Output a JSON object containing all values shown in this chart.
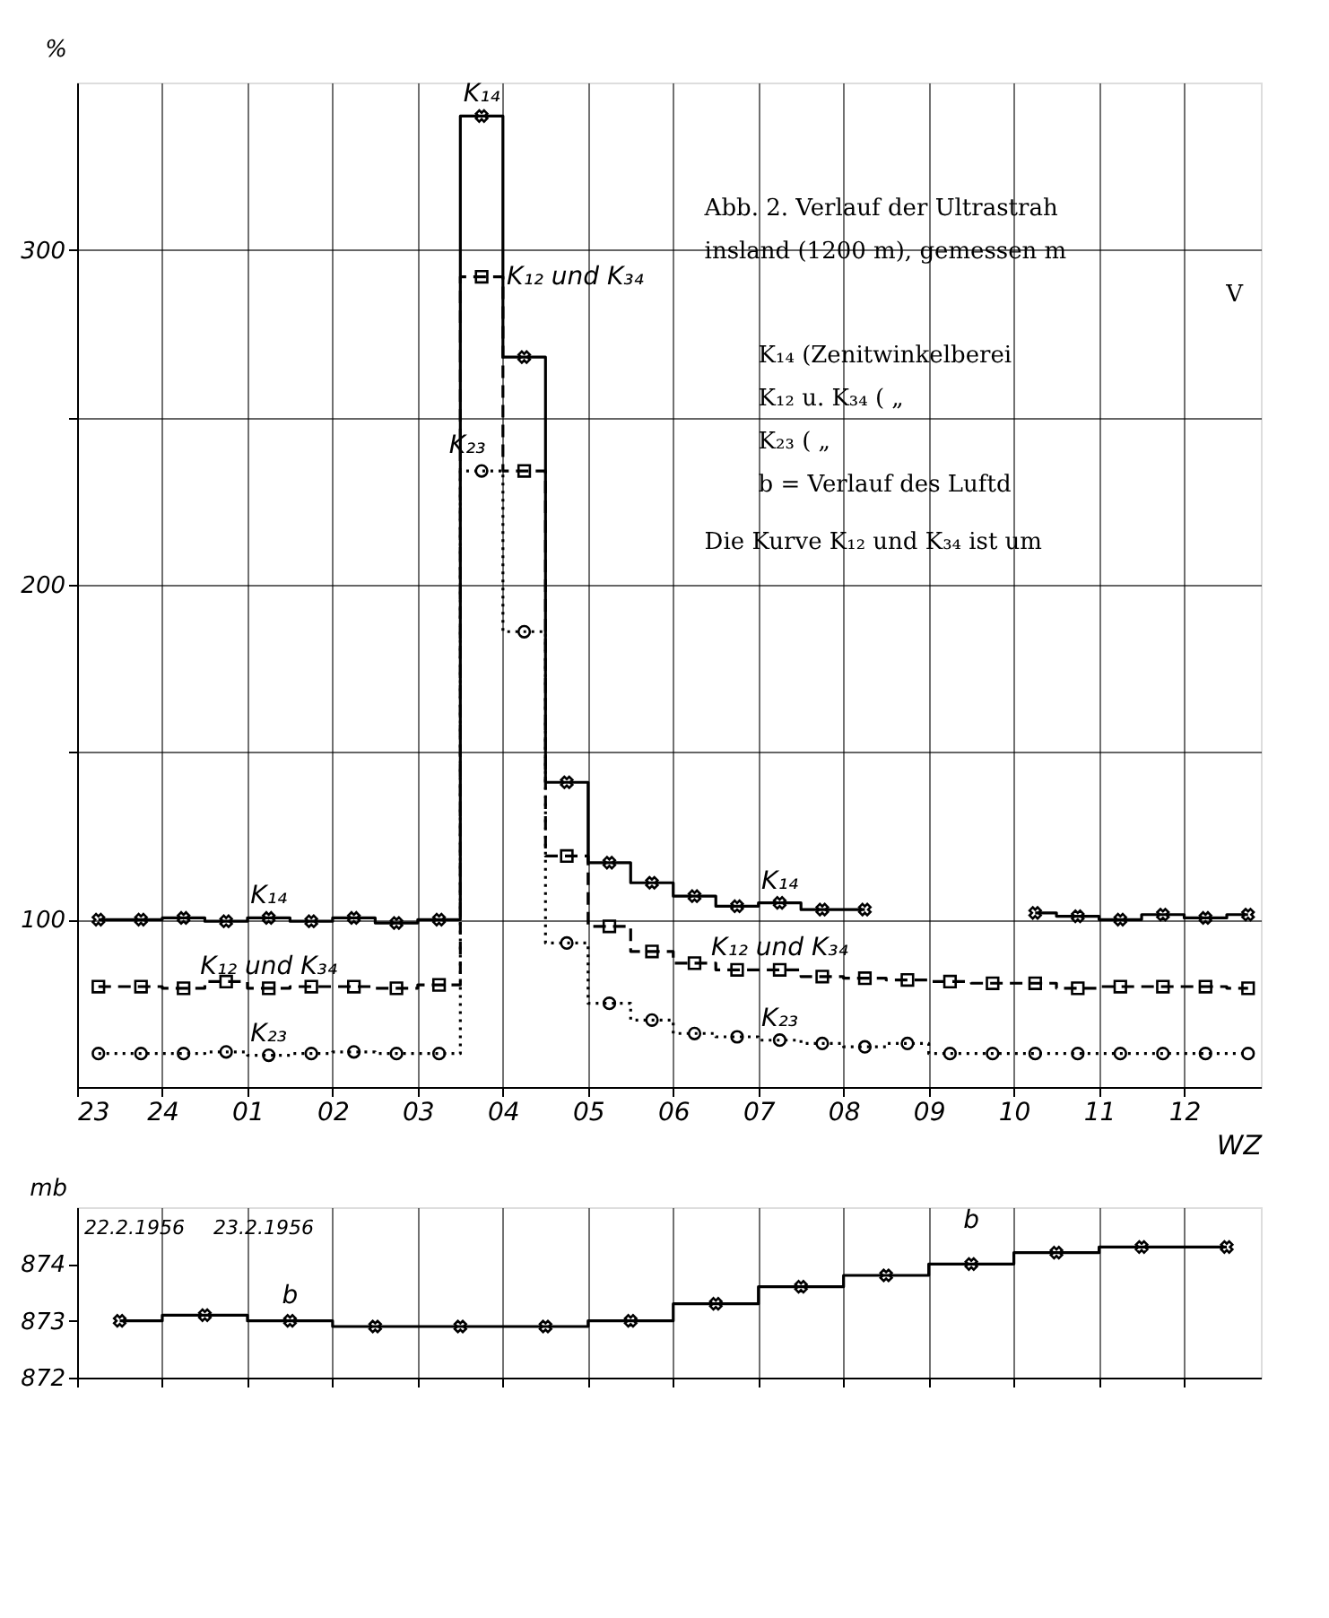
{
  "chart_data": [
    {
      "type": "step",
      "ylabel": "%",
      "xlabel": "WZ",
      "x": [
        "1956-02-22T23:15",
        "1956-02-22T23:45",
        "1956-02-23T00:15",
        "1956-02-23T00:45",
        "1956-02-23T01:15",
        "1956-02-23T01:45",
        "1956-02-23T02:15",
        "1956-02-23T02:45",
        "1956-02-23T03:15",
        "1956-02-23T03:45",
        "1956-02-23T04:15",
        "1956-02-23T04:45",
        "1956-02-23T05:15",
        "1956-02-23T05:45",
        "1956-02-23T06:15",
        "1956-02-23T06:45",
        "1956-02-23T07:15",
        "1956-02-23T07:45",
        "1956-02-23T08:15",
        "1956-02-23T08:45",
        "1956-02-23T09:15",
        "1956-02-23T09:45",
        "1956-02-23T10:15",
        "1956-02-23T10:45",
        "1956-02-23T11:15",
        "1956-02-23T11:45",
        "1956-02-23T12:15",
        "1956-02-23T12:45"
      ],
      "series": [
        {
          "name": "K₁₄",
          "color": "#000000",
          "marker": "cross",
          "line_style": "solid",
          "values": [
            100,
            100,
            100.5,
            99.5,
            100.5,
            99.5,
            100.5,
            99,
            100,
            340,
            268,
            141,
            117,
            111,
            107,
            104,
            105,
            103,
            103,
            null,
            null,
            null,
            102,
            101,
            100,
            101.5,
            100.5,
            101.5
          ]
        },
        {
          "name": "K₁₂ und K₃₄",
          "color": "#000000",
          "marker": "square",
          "line_style": "dashed",
          "values": [
            80,
            80,
            79.5,
            81.5,
            79.5,
            80,
            80,
            79.5,
            80.5,
            292,
            234,
            119,
            98,
            90.5,
            87,
            85,
            85,
            83,
            82.5,
            82,
            81.5,
            81,
            81,
            79.5,
            80,
            80,
            80,
            79.5
          ]
        },
        {
          "name": "K₂₃",
          "color": "#000000",
          "marker": "circle",
          "line_style": "dotted",
          "values": [
            60,
            60,
            60,
            60.5,
            59.5,
            60,
            60.5,
            60,
            60,
            234,
            186,
            93,
            75,
            70,
            66,
            65,
            64,
            63,
            62,
            63,
            60,
            60,
            60,
            60,
            60,
            60,
            60,
            60
          ]
        }
      ],
      "xlim": [
        "1956-02-22T23:00",
        "1956-02-23T12:54"
      ],
      "xticks": [
        {
          "value": "1956-02-22T23:00",
          "label": "23"
        },
        {
          "value": "1956-02-23T00:00",
          "label": "24"
        },
        {
          "value": "1956-02-23T01:00",
          "label": "01"
        },
        {
          "value": "1956-02-23T02:00",
          "label": "02"
        },
        {
          "value": "1956-02-23T03:00",
          "label": "03"
        },
        {
          "value": "1956-02-23T04:00",
          "label": "04"
        },
        {
          "value": "1956-02-23T05:00",
          "label": "05"
        },
        {
          "value": "1956-02-23T06:00",
          "label": "06"
        },
        {
          "value": "1956-02-23T07:00",
          "label": "07"
        },
        {
          "value": "1956-02-23T08:00",
          "label": "08"
        },
        {
          "value": "1956-02-23T09:00",
          "label": "09"
        },
        {
          "value": "1956-02-23T10:00",
          "label": "10"
        },
        {
          "value": "1956-02-23T11:00",
          "label": "11"
        },
        {
          "value": "1956-02-23T12:00",
          "label": "12"
        }
      ],
      "ylim": [
        50,
        350
      ],
      "yticks": [
        100,
        {
          "value": 150,
          "label": null
        },
        200,
        {
          "value": 250,
          "label": null
        },
        300
      ],
      "grid": true,
      "legend": false,
      "annotations": [
        "Abb. 2. Verlauf der Ultrastrah",
        "insland (1200 m), gemessen m",
        "V",
        "K₁₄ (Zenitwinkelberei",
        "K₁₂ u. K₃₄ (  „",
        "K₂₃        (  „",
        "b = Verlauf des Luftd",
        "Die Kurve K₁₂ und K₃₄ ist um"
      ]
    },
    {
      "type": "step",
      "ylabel": "mb",
      "x": [
        "1956-02-22T23:30",
        "1956-02-23T00:30",
        "1956-02-23T01:30",
        "1956-02-23T02:30",
        "1956-02-23T03:30",
        "1956-02-23T04:30",
        "1956-02-23T05:30",
        "1956-02-23T06:30",
        "1956-02-23T07:30",
        "1956-02-23T08:30",
        "1956-02-23T09:30",
        "1956-02-23T10:30",
        "1956-02-23T11:30",
        "1956-02-23T12:30"
      ],
      "series": [
        {
          "name": "b",
          "color": "#000000",
          "marker": "cross",
          "line_style": "solid",
          "values": [
            873.0,
            873.1,
            873.0,
            872.9,
            872.9,
            872.9,
            873.0,
            873.3,
            873.6,
            873.8,
            874.0,
            874.2,
            874.3,
            874.3
          ]
        }
      ],
      "xlim": [
        "1956-02-22T23:00",
        "1956-02-23T12:54"
      ],
      "xticks": [
        {
          "value": "1956-02-22T23:00",
          "label": null
        },
        {
          "value": "1956-02-23T00:00",
          "label": null
        },
        {
          "value": "1956-02-23T01:00",
          "label": null
        },
        {
          "value": "1956-02-23T02:00",
          "label": null
        },
        {
          "value": "1956-02-23T03:00",
          "label": null
        },
        {
          "value": "1956-02-23T04:00",
          "label": null
        },
        {
          "value": "1956-02-23T05:00",
          "label": null
        },
        {
          "value": "1956-02-23T06:00",
          "label": null
        },
        {
          "value": "1956-02-23T07:00",
          "label": null
        },
        {
          "value": "1956-02-23T08:00",
          "label": null
        },
        {
          "value": "1956-02-23T09:00",
          "label": null
        },
        {
          "value": "1956-02-23T10:00",
          "label": null
        },
        {
          "value": "1956-02-23T11:00",
          "label": null
        },
        {
          "value": "1956-02-23T12:00",
          "label": null
        }
      ],
      "ylim": [
        872,
        875
      ],
      "yticks": [
        872,
        873,
        874
      ],
      "grid": "x",
      "legend": false,
      "tick_labels": "y",
      "annotations": [
        "22.2.1956",
        "23.2.1956"
      ]
    }
  ]
}
